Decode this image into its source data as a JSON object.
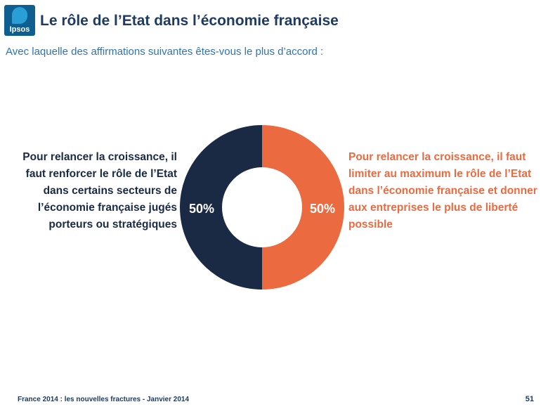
{
  "header": {
    "logo_text": "Ipsos",
    "title": "Le rôle de l’Etat dans l’économie française",
    "subtitle": "Avec laquelle des affirmations suivantes êtes-vous le plus d’accord :"
  },
  "chart_data": {
    "type": "pie",
    "variant": "donut",
    "slices": [
      {
        "label": "Pour relancer la croissance, il faut renforcer le rôle de l’Etat dans certains secteurs de l’économie française jugés porteurs ou stratégiques",
        "value": 50,
        "value_label": "50%",
        "color": "#1b2a44"
      },
      {
        "label": "Pour relancer la croissance, il faut limiter au maximum le rôle de l’Etat dans l’économie française et donner aux entreprises le plus de liberté possible",
        "value": 50,
        "value_label": "50%",
        "color": "#ec6a3f"
      }
    ]
  },
  "footer": {
    "source": "France 2014 : les nouvelles fractures - Janvier 2014",
    "page_number": "51"
  }
}
